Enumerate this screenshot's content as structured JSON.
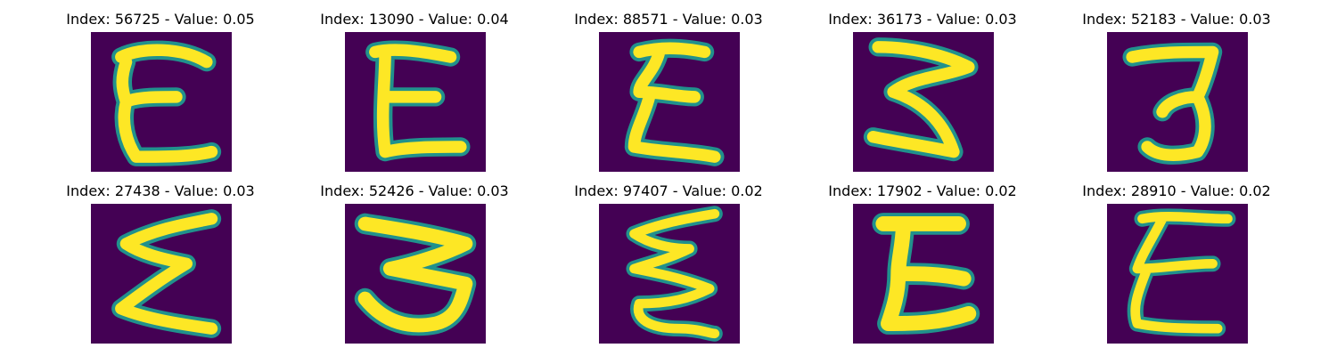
{
  "figure": {
    "colors": {
      "background": "#440154",
      "mid": "#21918c",
      "high": "#fde725"
    },
    "panels": [
      {
        "index_value": "Index: 56725 - Value: 0.05",
        "glyph": "E"
      },
      {
        "index_value": "Index: 13090 - Value: 0.04",
        "glyph": "E"
      },
      {
        "index_value": "Index: 88571 - Value: 0.03",
        "glyph": "E"
      },
      {
        "index_value": "Index: 36173 - Value: 0.03",
        "glyph": "E"
      },
      {
        "index_value": "Index: 52183 - Value: 0.03",
        "glyph": "3"
      },
      {
        "index_value": "Index: 27438 - Value: 0.03",
        "glyph": "E"
      },
      {
        "index_value": "Index: 52426 - Value: 0.03",
        "glyph": "3"
      },
      {
        "index_value": "Index: 97407 - Value: 0.02",
        "glyph": "E"
      },
      {
        "index_value": "Index: 17902 - Value: 0.02",
        "glyph": "E"
      },
      {
        "index_value": "Index: 28910 - Value: 0.02",
        "glyph": "E"
      }
    ]
  }
}
